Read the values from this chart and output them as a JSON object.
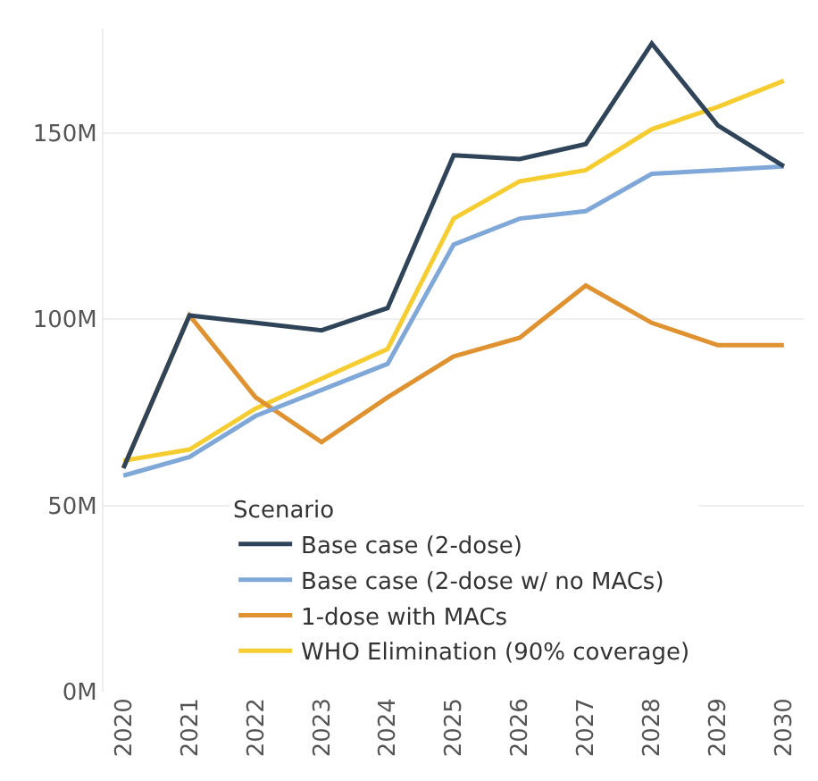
{
  "chart_data": {
    "type": "line",
    "legend_title": "Scenario",
    "categories": [
      "2020",
      "2021",
      "2022",
      "2023",
      "2024",
      "2025",
      "2026",
      "2027",
      "2028",
      "2029",
      "2030"
    ],
    "series": [
      {
        "name": "Base case (2-dose)",
        "color": "#2f4458",
        "values": [
          60,
          101,
          99,
          97,
          103,
          144,
          143,
          147,
          174,
          152,
          141
        ]
      },
      {
        "name": "Base case (2-dose w/ no MACs)",
        "color": "#7fa8d8",
        "values": [
          58,
          63,
          74,
          81,
          88,
          120,
          127,
          129,
          139,
          140,
          141
        ]
      },
      {
        "name": "1-dose with MACs",
        "color": "#df922f",
        "values": [
          60,
          101,
          79,
          67,
          79,
          90,
          95,
          109,
          99,
          93,
          93
        ]
      },
      {
        "name": "WHO Elimination (90% coverage)",
        "color": "#f6cd30",
        "values": [
          62,
          65,
          76,
          84,
          92,
          127,
          137,
          140,
          151,
          157,
          164
        ]
      }
    ],
    "ylim": [
      0,
      178
    ],
    "yticks": [
      {
        "value": 0,
        "label": "0M"
      },
      {
        "value": 50,
        "label": "50M"
      },
      {
        "value": 100,
        "label": "100M"
      },
      {
        "value": 150,
        "label": "150M"
      }
    ],
    "grid": "y",
    "legend": "bottom left",
    "line_style": "solid"
  }
}
